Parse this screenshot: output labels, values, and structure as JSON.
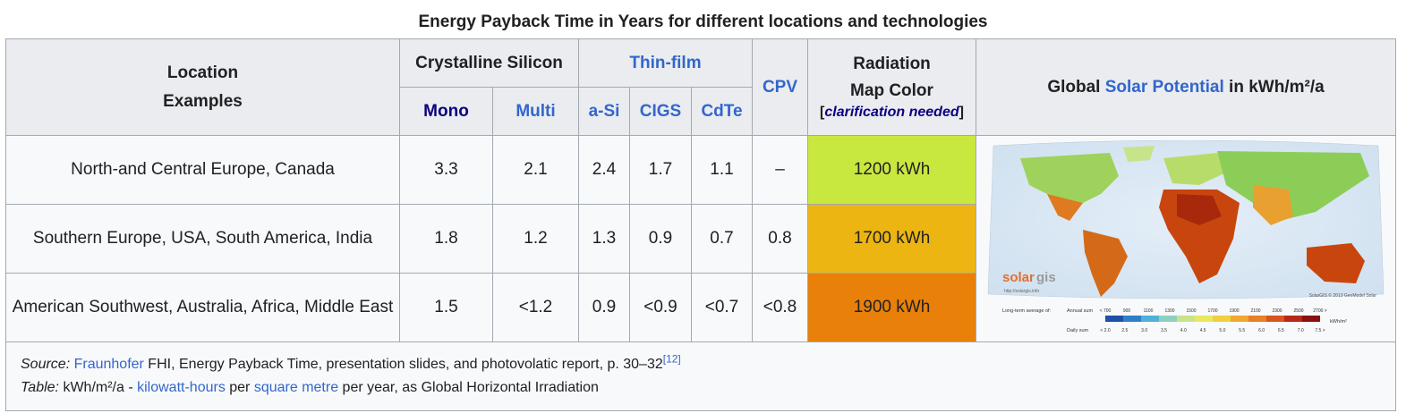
{
  "caption": "Energy Payback Time in Years for different locations and technologies",
  "headers": {
    "location_line1": "Location",
    "location_line2": "Examples",
    "crystalline": "Crystalline Silicon",
    "mono": "Mono",
    "multi": "Multi",
    "thinfilm": "Thin-film",
    "asi": "a-Si",
    "cigs": "CIGS",
    "cdte": "CdTe",
    "cpv": "CPV",
    "radiation_line1": "Radiation",
    "radiation_line2": "Map Color",
    "clar_open": "[",
    "clar_text": "clarification needed",
    "clar_close": "]",
    "global_prefix": "Global ",
    "global_link": "Solar Potential",
    "global_suffix": " in kWh/m²/a"
  },
  "rows": [
    {
      "location": "North-and Central Europe, Canada",
      "mono": "3.3",
      "multi": "2.1",
      "asi": "2.4",
      "cigs": "1.7",
      "cdte": "1.1",
      "cpv": "–",
      "radiation": "1200 kWh",
      "color": "#c9e83f"
    },
    {
      "location": "Southern Europe, USA, South America, India",
      "mono": "1.8",
      "multi": "1.2",
      "asi": "1.3",
      "cigs": "0.9",
      "cdte": "0.7",
      "cpv": "0.8",
      "radiation": "1700 kWh",
      "color": "#edb511"
    },
    {
      "location": "American Southwest, Australia, Africa, Middle East",
      "mono": "1.5",
      "multi": "<1.2",
      "asi": "0.9",
      "cigs": "<0.9",
      "cdte": "<0.7",
      "cpv": "<0.8",
      "radiation": "1900 kWh",
      "color": "#e8800a"
    }
  ],
  "map": {
    "logo_solar": "solar",
    "logo_gis": "gis",
    "url": "http://solargis.info",
    "credit": "SolarGIS © 2013 GeoModel Solar",
    "legend_label": "Long-term average of:",
    "annual_label": "Annual sum",
    "daily_label": "Daily sum",
    "annual_ticks": [
      "< 700",
      "900",
      "1100",
      "1300",
      "1500",
      "1700",
      "1900",
      "2100",
      "2300",
      "2500",
      "2700 >"
    ],
    "daily_ticks": [
      "< 2.0",
      "2.5",
      "3.0",
      "3.5",
      "4.0",
      "4.5",
      "5.0",
      "5.5",
      "6.0",
      "6.5",
      "7.0",
      "7.5 >"
    ],
    "unit": "kWh/m²",
    "scale_colors": [
      "#1f4fa8",
      "#2f7fc8",
      "#4fb0d8",
      "#8dd0c0",
      "#c8e48a",
      "#e8e860",
      "#f0d040",
      "#f0a830",
      "#e88028",
      "#d85420",
      "#b82818",
      "#8a1010"
    ]
  },
  "footer": {
    "source_label": "Source:",
    "fraunhofer": "Fraunhofer",
    "source_rest": " FHI, Energy Payback Time, presentation slides, and photovolatic report, p. 30–32",
    "ref": "[12]",
    "table_label": "Table:",
    "t1": " kWh/m²/a - ",
    "kwh_link": "kilowatt-hours",
    "t2": " per ",
    "sqm_link": "square metre",
    "t3": " per year, as Global Horizontal Irradiation"
  }
}
